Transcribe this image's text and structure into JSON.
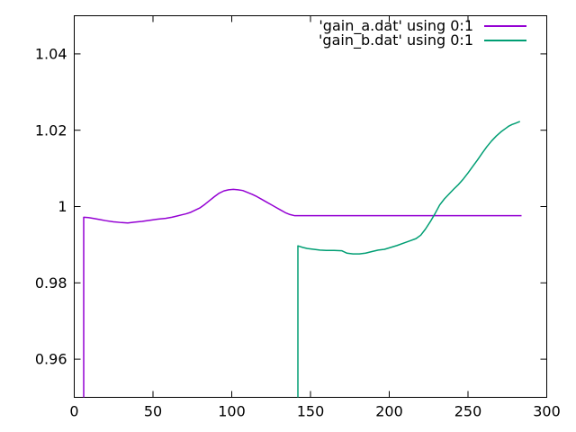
{
  "window": {
    "background": "#ffffff",
    "axis_color": "#000000",
    "text_color": "#000000"
  },
  "chart_data": {
    "type": "line",
    "title": "",
    "xlabel": "",
    "ylabel": "",
    "xlim": [
      0,
      300
    ],
    "ylim": [
      0.95,
      1.05
    ],
    "grid": false,
    "xticks": {
      "values": [
        0,
        50,
        100,
        150,
        200,
        250,
        300
      ],
      "labels": [
        "0",
        "50",
        "100",
        "150",
        "200",
        "250",
        "300"
      ]
    },
    "yticks": {
      "values": [
        0.96,
        0.98,
        1.0,
        1.02,
        1.04
      ],
      "labels": [
        "0.96",
        "0.98",
        "1",
        "1.02",
        "1.04"
      ]
    },
    "legend": {
      "position": "top-right-inside"
    },
    "series": [
      {
        "name": "'gain_a.dat' using 0:1",
        "color": "#9400d3",
        "points": [
          [
            6,
            0.95
          ],
          [
            6,
            0.9972
          ],
          [
            9,
            0.9971
          ],
          [
            12,
            0.9969
          ],
          [
            16,
            0.9966
          ],
          [
            20,
            0.9963
          ],
          [
            25,
            0.996
          ],
          [
            30,
            0.9958
          ],
          [
            34,
            0.9957
          ],
          [
            38,
            0.9959
          ],
          [
            43,
            0.9961
          ],
          [
            48,
            0.9964
          ],
          [
            53,
            0.9967
          ],
          [
            58,
            0.9969
          ],
          [
            62,
            0.9972
          ],
          [
            65,
            0.9975
          ],
          [
            68,
            0.9978
          ],
          [
            71,
            0.9981
          ],
          [
            74,
            0.9985
          ],
          [
            77,
            0.9991
          ],
          [
            80,
            0.9997
          ],
          [
            83,
            1.0006
          ],
          [
            86,
            1.0016
          ],
          [
            89,
            1.0026
          ],
          [
            92,
            1.0035
          ],
          [
            95,
            1.0041
          ],
          [
            98,
            1.0044
          ],
          [
            101,
            1.0045
          ],
          [
            104,
            1.0044
          ],
          [
            107,
            1.0042
          ],
          [
            110,
            1.0037
          ],
          [
            113,
            1.0032
          ],
          [
            116,
            1.0026
          ],
          [
            119,
            1.0019
          ],
          [
            122,
            1.0012
          ],
          [
            125,
            1.0005
          ],
          [
            128,
            0.9998
          ],
          [
            131,
            0.9991
          ],
          [
            134,
            0.9984
          ],
          [
            137,
            0.9979
          ],
          [
            140,
            0.9976
          ],
          [
            284,
            0.9976
          ]
        ]
      },
      {
        "name": "'gain_b.dat' using 0:1",
        "color": "#009e73",
        "points": [
          [
            142,
            0.95
          ],
          [
            142,
            0.9897
          ],
          [
            145,
            0.9893
          ],
          [
            148,
            0.989
          ],
          [
            152,
            0.9888
          ],
          [
            156,
            0.9886
          ],
          [
            160,
            0.9885
          ],
          [
            165,
            0.9885
          ],
          [
            170,
            0.9884
          ],
          [
            173,
            0.9878
          ],
          [
            177,
            0.9876
          ],
          [
            181,
            0.9876
          ],
          [
            185,
            0.9878
          ],
          [
            189,
            0.9882
          ],
          [
            193,
            0.9886
          ],
          [
            197,
            0.9888
          ],
          [
            201,
            0.9893
          ],
          [
            205,
            0.9898
          ],
          [
            209,
            0.9904
          ],
          [
            213,
            0.991
          ],
          [
            217,
            0.9916
          ],
          [
            220,
            0.9925
          ],
          [
            223,
            0.9941
          ],
          [
            226,
            0.996
          ],
          [
            229,
            0.9981
          ],
          [
            232,
            1.0004
          ],
          [
            235,
            1.002
          ],
          [
            238,
            1.0033
          ],
          [
            241,
            1.0046
          ],
          [
            244,
            1.0058
          ],
          [
            247,
            1.0072
          ],
          [
            250,
            1.0088
          ],
          [
            253,
            1.0105
          ],
          [
            256,
            1.0122
          ],
          [
            259,
            1.014
          ],
          [
            262,
            1.0157
          ],
          [
            265,
            1.0172
          ],
          [
            268,
            1.0185
          ],
          [
            271,
            1.0196
          ],
          [
            274,
            1.0205
          ],
          [
            276,
            1.0211
          ],
          [
            278,
            1.0215
          ],
          [
            280,
            1.0218
          ],
          [
            283,
            1.0223
          ]
        ]
      }
    ]
  }
}
